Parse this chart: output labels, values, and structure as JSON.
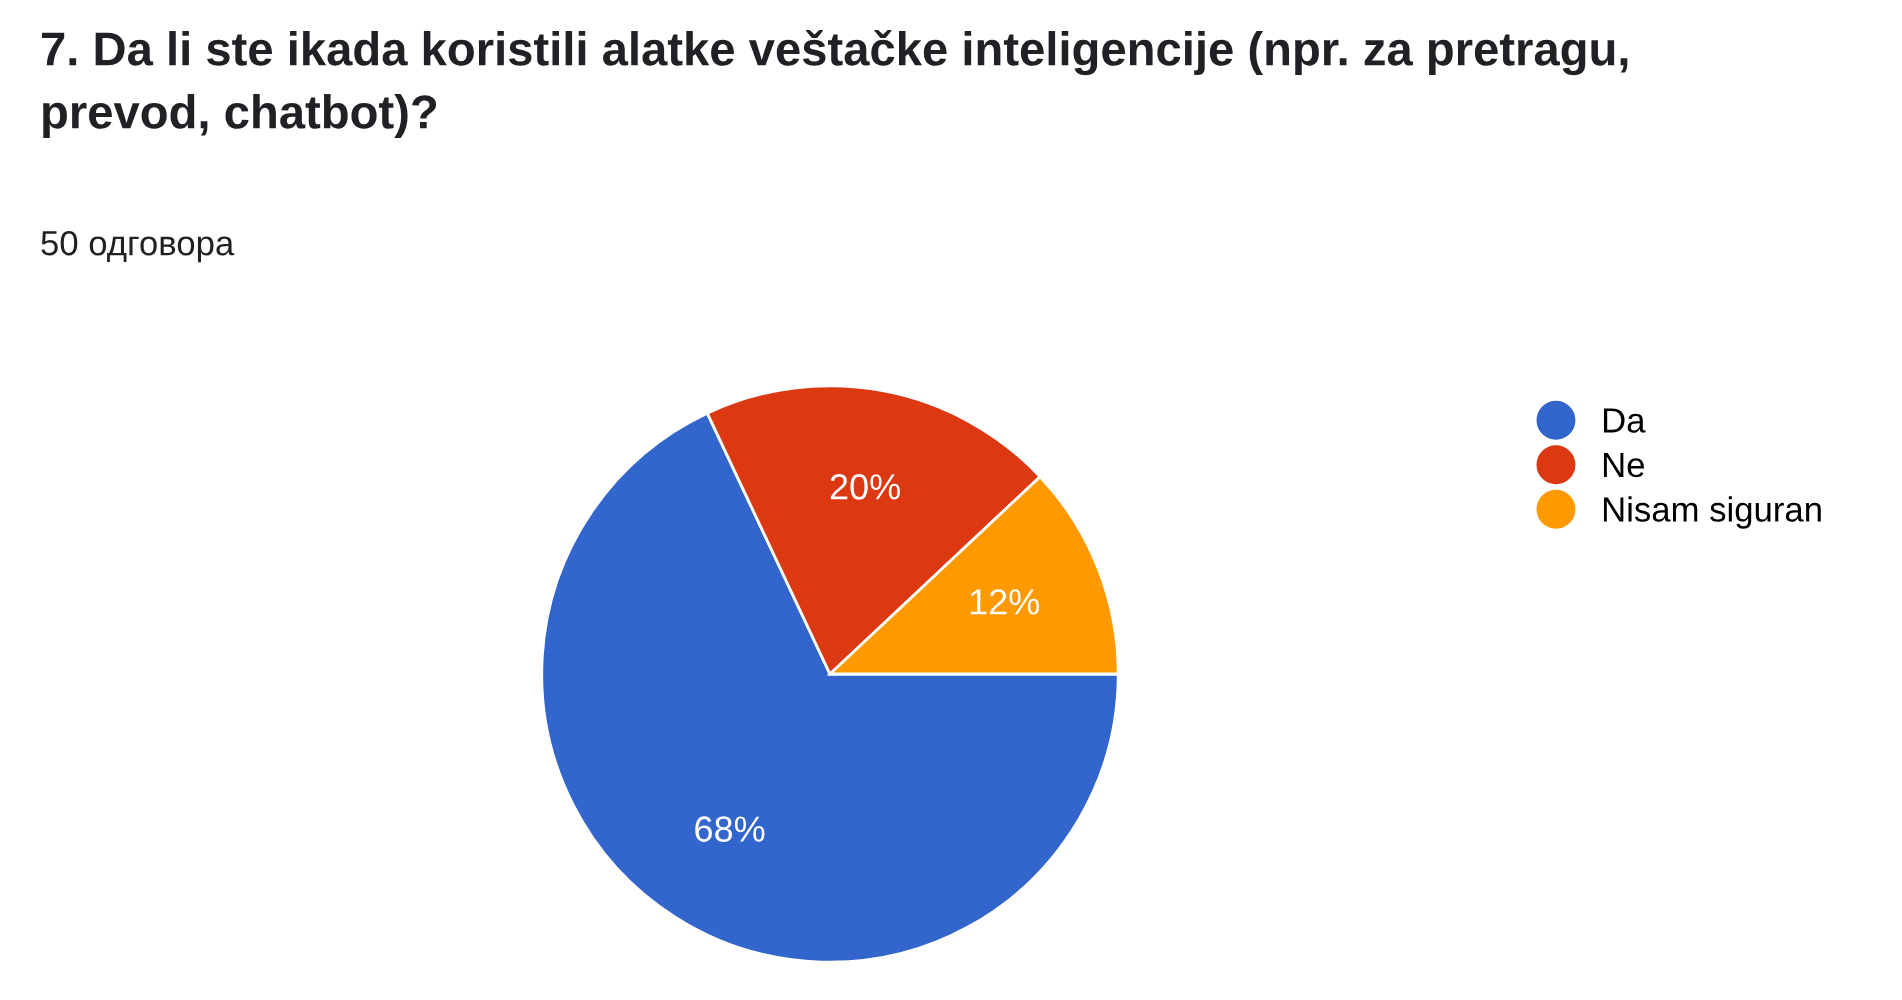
{
  "chart_data": {
    "type": "pie",
    "title": "7. Da li ste ikada koristili alatke veštačke inteligencije (npr. za pretragu,\nprevod, chatbot)?",
    "subtitle": "50 одговора",
    "categories": [
      "Da",
      "Ne",
      "Nisam siguran"
    ],
    "values": [
      68,
      20,
      12
    ],
    "colors": [
      "#3366cc",
      "#dc3912",
      "#ff9900"
    ],
    "value_labels": [
      "68%",
      "20%",
      "12%"
    ],
    "legend": "right"
  }
}
